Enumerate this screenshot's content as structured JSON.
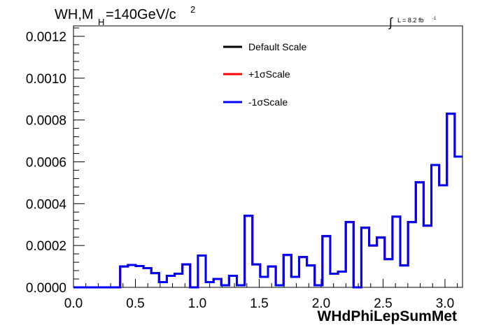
{
  "title": {
    "main": "WH,M",
    "sub": "H",
    "rest": "=140GeV/c",
    "sup": "2"
  },
  "luminosity": {
    "prefix": "∫",
    "text": "L = 8.2 fb",
    "sup": "-1"
  },
  "chart_data": {
    "type": "histogram",
    "xlabel": "WHdPhiLepSumMet",
    "ylabel": "",
    "xlim": [
      0.0,
      3.1416
    ],
    "ylim": [
      0.0,
      0.00125
    ],
    "x_ticks": [
      "0.0",
      "0.5",
      "1.0",
      "1.5",
      "2.0",
      "2.5",
      "3.0"
    ],
    "y_ticks": [
      "0.0000",
      "0.0002",
      "0.0004",
      "0.0006",
      "0.0008",
      "0.0010",
      "0.0012"
    ],
    "bin_edges": [
      0.0,
      0.0628,
      0.1257,
      0.1885,
      0.2513,
      0.3142,
      0.377,
      0.4398,
      0.5027,
      0.5655,
      0.6283,
      0.6912,
      0.754,
      0.8168,
      0.8796,
      0.9425,
      1.0053,
      1.0681,
      1.131,
      1.1938,
      1.2566,
      1.3195,
      1.3823,
      1.4451,
      1.508,
      1.5708,
      1.6336,
      1.6965,
      1.7593,
      1.8221,
      1.885,
      1.9478,
      2.0106,
      2.0735,
      2.1363,
      2.1991,
      2.2619,
      2.3248,
      2.3876,
      2.4504,
      2.5133,
      2.5761,
      2.6389,
      2.7018,
      2.7646,
      2.8274,
      2.8903,
      2.9531,
      3.0159,
      3.0788,
      3.1416
    ],
    "series": [
      {
        "name": "Default Scale",
        "color": "#000000",
        "values": [
          0,
          0,
          0,
          0,
          0,
          0,
          0.0001,
          0.000107,
          0.000102,
          9.2e-05,
          6.8e-05,
          2.5e-05,
          5.5e-05,
          6.5e-05,
          0.00011,
          0,
          0.000152,
          2.5e-05,
          4e-05,
          1e-05,
          5.5e-05,
          1e-05,
          0.000342,
          0.00011,
          5e-05,
          0.0001,
          1e-05,
          0.000155,
          5e-05,
          0.000145,
          0.000105,
          1e-05,
          0.000245,
          6.5e-05,
          7.5e-05,
          0.000312,
          0,
          0.000285,
          0.0002,
          0.000238,
          0.000135,
          0.000338,
          0.000105,
          0.000312,
          0.000502,
          0.000295,
          0.000585,
          0.000488,
          0.00083,
          0.000625
        ]
      },
      {
        "name": "+1σScale",
        "color": "#ff0000",
        "values": [
          0,
          0,
          0,
          0,
          0,
          0,
          0.0001,
          0.000107,
          0.000102,
          9.2e-05,
          6.8e-05,
          2.5e-05,
          5.5e-05,
          6.5e-05,
          0.00011,
          0,
          0.000152,
          2.5e-05,
          4e-05,
          1e-05,
          5.5e-05,
          1e-05,
          0.000342,
          0.00011,
          5e-05,
          0.0001,
          1e-05,
          0.000155,
          5e-05,
          0.000145,
          0.000105,
          1e-05,
          0.000245,
          6.5e-05,
          7.5e-05,
          0.000312,
          0,
          0.000285,
          0.0002,
          0.000238,
          0.000135,
          0.000338,
          0.000105,
          0.000312,
          0.000502,
          0.000295,
          0.000585,
          0.000488,
          0.00083,
          0.000625
        ]
      },
      {
        "name": "-1σScale",
        "color": "#0000ff",
        "values": [
          0,
          0,
          0,
          0,
          0,
          0,
          0.0001,
          0.000107,
          0.000102,
          9.2e-05,
          6.8e-05,
          2.5e-05,
          5.5e-05,
          6.5e-05,
          0.00011,
          0,
          0.000152,
          2.5e-05,
          4e-05,
          1e-05,
          5.5e-05,
          1e-05,
          0.000342,
          0.00011,
          5e-05,
          0.0001,
          1e-05,
          0.000155,
          5e-05,
          0.000145,
          0.000105,
          1e-05,
          0.000245,
          6.5e-05,
          7.5e-05,
          0.000312,
          0,
          0.000285,
          0.0002,
          0.000238,
          0.000135,
          0.000338,
          0.000105,
          0.000312,
          0.000502,
          0.000295,
          0.000585,
          0.000488,
          0.00083,
          0.000625
        ]
      }
    ],
    "legend_position": "top-center",
    "grid": false
  }
}
